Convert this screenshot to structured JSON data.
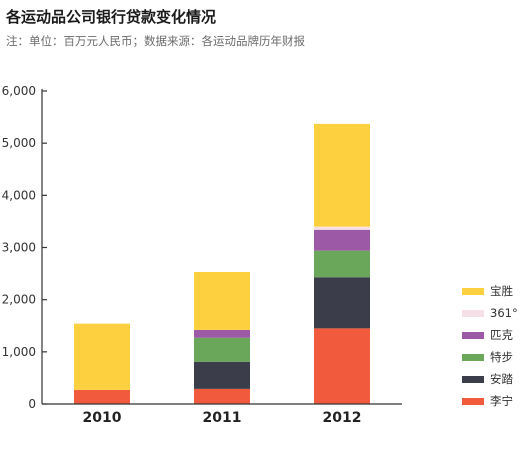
{
  "header": {
    "title": "各运动品公司银行贷款变化情况",
    "subtitle": "注：单位：百万元人民币；数据来源：各运动品牌历年财报"
  },
  "colors": {
    "李宁": "#f15a3c",
    "安踏": "#3b3d4a",
    "特步": "#6aa75b",
    "匹克": "#9b59a6",
    "361°": "#f6dfe6",
    "宝胜": "#fdd03f"
  },
  "chart_data": {
    "type": "bar",
    "stacked": true,
    "title": "各运动品公司银行贷款变化情况",
    "subtitle": "注：单位：百万元人民币；数据来源：各运动品牌历年财报",
    "xlabel": "",
    "ylabel": "",
    "categories": [
      "2010",
      "2011",
      "2012"
    ],
    "ylim": [
      0,
      6000
    ],
    "yticks": [
      "0",
      "1,000",
      "2,000",
      "3,000",
      "4,000",
      "5,000",
      "6,000"
    ],
    "ytick_values": [
      0,
      1000,
      2000,
      3000,
      4000,
      5000,
      6000
    ],
    "grid": false,
    "legend_position": "right",
    "series": [
      {
        "name": "李宁",
        "values": [
          270,
          290,
          1450
        ]
      },
      {
        "name": "安踏",
        "values": [
          0,
          520,
          980
        ]
      },
      {
        "name": "特步",
        "values": [
          0,
          460,
          510
        ]
      },
      {
        "name": "匹克",
        "values": [
          0,
          150,
          400
        ]
      },
      {
        "name": "361°",
        "values": [
          0,
          0,
          60
        ]
      },
      {
        "name": "宝胜",
        "values": [
          1270,
          1110,
          1970
        ]
      }
    ],
    "legend_order": [
      "宝胜",
      "361°",
      "匹克",
      "特步",
      "安踏",
      "李宁"
    ]
  }
}
